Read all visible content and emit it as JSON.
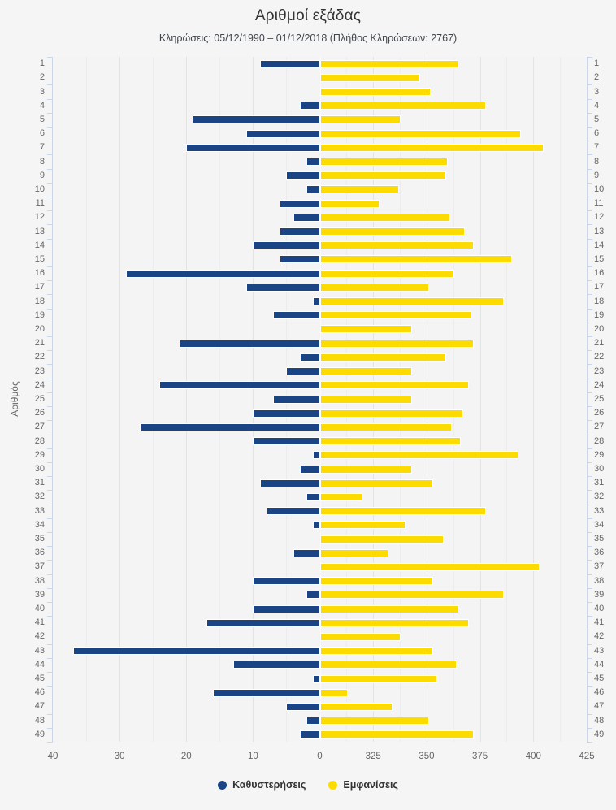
{
  "header": {
    "title": "Αριθμοί εξάδας",
    "subtitle": "Κληρώσεις: 05/12/1990 – 01/12/2018 (Πλήθος Κληρώσεων: 2767)"
  },
  "chart_data": {
    "type": "bar",
    "orientation": "horizontal-diverging",
    "title": "Αριθμοί εξάδας",
    "subtitle": "Κληρώσεις: 05/12/1990 – 01/12/2018 (Πλήθος Κληρώσεων: 2767)",
    "ylabel": "Αριθμός",
    "grid": true,
    "legend_position": "bottom",
    "categories": [
      1,
      2,
      3,
      4,
      5,
      6,
      7,
      8,
      9,
      10,
      11,
      12,
      13,
      14,
      15,
      16,
      17,
      18,
      19,
      20,
      21,
      22,
      23,
      24,
      25,
      26,
      27,
      28,
      29,
      30,
      31,
      32,
      33,
      34,
      35,
      36,
      37,
      38,
      39,
      40,
      41,
      42,
      43,
      44,
      45,
      46,
      47,
      48,
      49
    ],
    "left_axis": {
      "label_ticks": [
        40,
        30,
        20,
        10,
        0
      ],
      "min": 0,
      "max": 40,
      "minor_step": 5,
      "direction": "values-increase-leftward"
    },
    "right_axis": {
      "label_ticks": [
        325,
        350,
        375,
        400,
        425
      ],
      "min": 300,
      "max": 425,
      "minor_step": 12.5
    },
    "series": [
      {
        "name": "Καθυστερήσεις",
        "color": "#1b4484",
        "axis": "left",
        "values": [
          9,
          0,
          0,
          3,
          19,
          11,
          20,
          2,
          5,
          2,
          6,
          4,
          6,
          10,
          6,
          29,
          11,
          1,
          7,
          0,
          21,
          3,
          5,
          24,
          7,
          10,
          27,
          10,
          1,
          3,
          9,
          2,
          8,
          1,
          0,
          4,
          0,
          10,
          2,
          10,
          17,
          0,
          37,
          13,
          1,
          16,
          5,
          2,
          3
        ]
      },
      {
        "name": "Εμφανίσεις",
        "color": "#fcdb00",
        "axis": "right",
        "values": [
          365,
          347,
          352,
          378,
          338,
          394,
          405,
          360,
          359,
          337,
          328,
          361,
          368,
          372,
          390,
          363,
          351,
          386,
          371,
          343,
          372,
          359,
          343,
          370,
          343,
          367,
          362,
          366,
          393,
          343,
          353,
          320,
          378,
          340,
          358,
          332,
          403,
          353,
          386,
          365,
          370,
          338,
          353,
          364,
          355,
          313,
          334,
          351,
          372
        ]
      }
    ]
  },
  "legend": {
    "items": [
      {
        "label": "Καθυστερήσεις",
        "color": "#1b4484"
      },
      {
        "label": "Εμφανίσεις",
        "color": "#fcdb00"
      }
    ]
  }
}
